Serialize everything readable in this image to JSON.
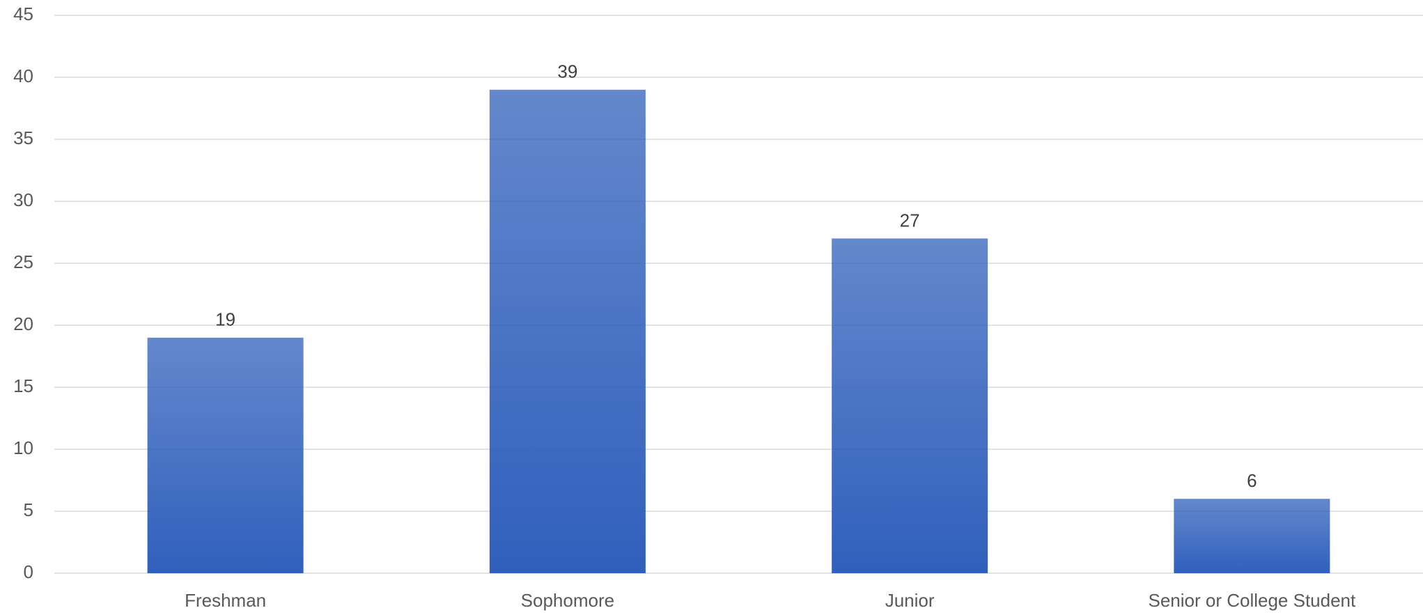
{
  "chart_data": {
    "type": "bar",
    "categories": [
      "Freshman",
      "Sophomore",
      "Junior",
      "Senior or College Student"
    ],
    "values": [
      19,
      39,
      27,
      6
    ],
    "color": "#3060bc",
    "ylim": [
      0,
      45
    ],
    "yticks": [
      0,
      5,
      10,
      15,
      20,
      25,
      30,
      35,
      40,
      45
    ],
    "grid": true
  }
}
